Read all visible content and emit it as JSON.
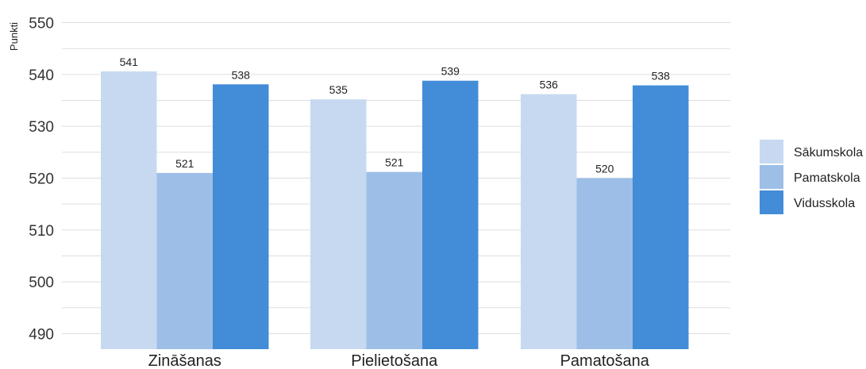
{
  "chart_data": {
    "type": "bar",
    "ylabel": "Punkti",
    "xlabel": "",
    "title": "",
    "ylim": [
      487,
      552
    ],
    "yticks": [
      490,
      500,
      510,
      520,
      530,
      540,
      550
    ],
    "grid": true,
    "legend_position": "right",
    "categories": [
      "Zināšanas",
      "Pielietošana",
      "Pamatošana"
    ],
    "series": [
      {
        "name": "Sākumskola",
        "color": "#c6d9f1",
        "values": [
          540.6,
          535.2,
          536.2
        ],
        "labels": [
          "541",
          "535",
          "536"
        ]
      },
      {
        "name": "Pamatskola",
        "color": "#9dbfe7",
        "values": [
          521.0,
          521.2,
          520.0
        ],
        "labels": [
          "521",
          "521",
          "520"
        ]
      },
      {
        "name": "Vidusskola",
        "color": "#438cd8",
        "values": [
          538.1,
          538.8,
          537.9
        ],
        "labels": [
          "538",
          "539",
          "538"
        ]
      }
    ]
  }
}
